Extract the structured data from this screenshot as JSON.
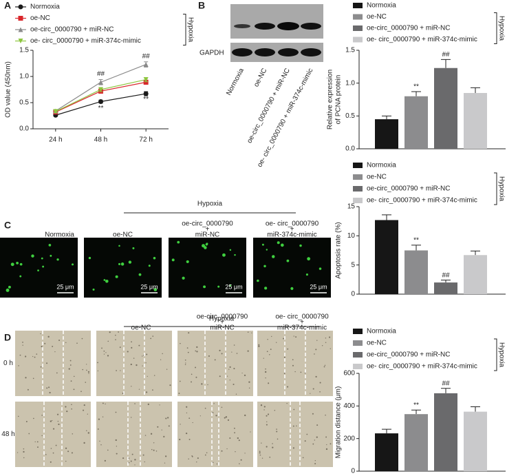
{
  "panels": {
    "a": "A",
    "b": "B",
    "c": "C",
    "d": "D"
  },
  "blot": {
    "lanes": [
      "Normoxia",
      "oe-NC",
      "oe-circ_0000790 + miR-NC",
      "oe- circ_0000790 + miR-374c-mimic"
    ],
    "loading_control": "GAPDH"
  },
  "fluorescence": {
    "hypoxia": "Hypoxia",
    "labels": [
      [
        "Normoxia"
      ],
      [
        "oe-NC"
      ],
      [
        "oe-circ_0000790",
        "+",
        "miR-NC"
      ],
      [
        "oe- circ_0000790",
        "+",
        "miR-374c-mimic"
      ]
    ],
    "scale_bar": "25 μm"
  },
  "migration": {
    "hypoxia": "Hypoxia",
    "labels": [
      null,
      [
        "oe-NC"
      ],
      [
        "oe-circ_0000790",
        "+",
        "miR-NC"
      ],
      [
        "oe- circ_0000790",
        "+",
        "miR-374c-mimic"
      ]
    ],
    "rows": [
      "0 h",
      "48 h"
    ]
  },
  "chart_data": [
    {
      "type": "line",
      "ylabel": [
        "OD value (450nm)"
      ],
      "categories": [
        "24 h",
        "48 h",
        "72 h"
      ],
      "ylim": [
        0,
        1.5
      ],
      "yticks": [
        {
          "value": 0,
          "label": "0.0"
        },
        {
          "value": 0.5,
          "label": "0.5"
        },
        {
          "value": 1,
          "label": "1.0"
        },
        {
          "value": 1.5,
          "label": "1.5"
        }
      ],
      "legend_group": "Hypoxia",
      "series": [
        {
          "name": "Normoxia",
          "color": "#1a1a1a",
          "marker": "circle",
          "values": [
            0.26,
            0.52,
            0.67
          ],
          "errors": [
            0.02,
            0.03,
            0.04
          ],
          "annotations": [
            null,
            null,
            null
          ]
        },
        {
          "name": "oe-NC",
          "color": "#d9262b",
          "marker": "square",
          "values": [
            0.32,
            0.72,
            0.89
          ],
          "errors": [
            0.02,
            0.04,
            0.04
          ],
          "annotations": [
            null,
            "**",
            "**"
          ]
        },
        {
          "name": "oe-circ_0000790 + miR-NC",
          "color": "#8a8a8a",
          "marker": "triangle",
          "values": [
            0.34,
            0.89,
            1.23
          ],
          "errors": [
            0.02,
            0.05,
            0.05
          ],
          "annotations": [
            null,
            "##",
            "##"
          ]
        },
        {
          "name": "oe- circ_0000790 + miR-374c-mimic",
          "color": "#8dc63f",
          "marker": "triangle-down",
          "values": [
            0.33,
            0.75,
            0.94
          ],
          "errors": [
            0.02,
            0.04,
            0.04
          ],
          "annotations": [
            null,
            null,
            null
          ]
        }
      ]
    },
    {
      "type": "bar",
      "ylabel": [
        "Relative expression",
        "of PCNA protein"
      ],
      "categories": [
        "Normoxia",
        "oe-NC",
        "oe-circ_0000790 + miR-NC",
        "oe- circ_0000790 + miR-374c-mimic"
      ],
      "colors": [
        "#161616",
        "#8c8c8e",
        "#6a6a6c",
        "#c9c9cb"
      ],
      "values": [
        0.45,
        0.8,
        1.23,
        0.85
      ],
      "errors": [
        0.05,
        0.07,
        0.13,
        0.08
      ],
      "annotations": [
        null,
        "**",
        "##",
        null
      ],
      "ylim": [
        0,
        1.5
      ],
      "yticks": [
        {
          "value": 0,
          "label": "0.0"
        },
        {
          "value": 0.5,
          "label": "0.5"
        },
        {
          "value": 1,
          "label": "1.0"
        },
        {
          "value": 1.5,
          "label": "1.5"
        }
      ],
      "legend_group": "Hypoxia"
    },
    {
      "type": "bar",
      "ylabel": [
        "Apoptosis rate (%)"
      ],
      "categories": [
        "Normoxia",
        "oe-NC",
        "oe-circ_0000790 + miR-NC",
        "oe- circ_0000790 + miR-374c-mimic"
      ],
      "colors": [
        "#161616",
        "#8c8c8e",
        "#6a6a6c",
        "#c9c9cb"
      ],
      "values": [
        12.7,
        7.5,
        2.0,
        6.7
      ],
      "errors": [
        0.9,
        0.9,
        0.4,
        0.7
      ],
      "annotations": [
        null,
        "**",
        "##",
        null
      ],
      "ylim": [
        0,
        15
      ],
      "yticks": [
        0,
        5,
        10,
        15
      ],
      "legend_group": "Hypoxia"
    },
    {
      "type": "bar",
      "ylabel": [
        "Migration distance (μm)"
      ],
      "categories": [
        "Normoxia",
        "oe-NC",
        "oe-circ_0000790 + miR-NC",
        "oe- circ_0000790 + miR-374c-mimic"
      ],
      "colors": [
        "#161616",
        "#8c8c8e",
        "#6a6a6c",
        "#c9c9cb"
      ],
      "values": [
        232,
        350,
        478,
        365
      ],
      "errors": [
        25,
        25,
        30,
        30
      ],
      "annotations": [
        null,
        "**",
        "##",
        null
      ],
      "ylim": [
        0,
        600
      ],
      "yticks": [
        0,
        200,
        400,
        600
      ],
      "legend_group": "Hypoxia"
    }
  ]
}
